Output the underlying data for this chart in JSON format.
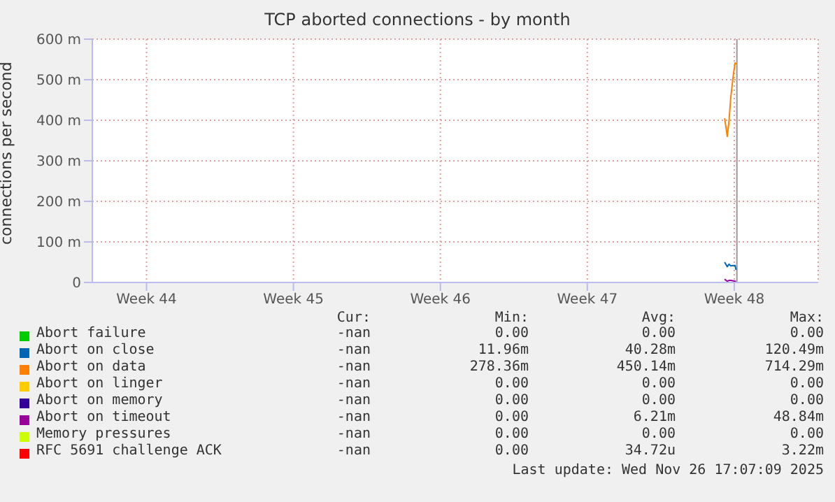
{
  "chart_data": {
    "type": "line",
    "title": "TCP aborted connections - by month",
    "ylabel": "connections per second",
    "x": [
      "2025-11-23T13:00",
      "2025-11-23T16:00",
      "2025-11-23T18:00",
      "2025-11-23T20:00",
      "2025-11-23T23:00",
      "2025-11-24T01:00",
      "2025-11-24T02:00"
    ],
    "xlim": [
      "2025-10-24T10:00",
      "2025-11-28T00:00"
    ],
    "xticks": [
      {
        "value": "2025-10-27",
        "label": "Week 44"
      },
      {
        "value": "2025-11-03",
        "label": "Week 45"
      },
      {
        "value": "2025-11-10",
        "label": "Week 46"
      },
      {
        "value": "2025-11-17",
        "label": "Week 47"
      },
      {
        "value": "2025-11-24",
        "label": "Week 48"
      }
    ],
    "ylim": [
      0,
      600
    ],
    "yticks": [
      0,
      {
        "value": 100,
        "label": "100 m"
      },
      {
        "value": 200,
        "label": "200 m"
      },
      {
        "value": 300,
        "label": "300 m"
      },
      {
        "value": 400,
        "label": "400 m"
      },
      {
        "value": 500,
        "label": "500 m"
      },
      {
        "value": 600,
        "label": "600 m"
      }
    ],
    "series": [
      {
        "name": "Abort failure",
        "color": "#00cc00",
        "values": [
          null,
          null,
          null,
          null,
          null,
          null,
          null
        ]
      },
      {
        "name": "Abort on close",
        "color": "#0066b3",
        "values": [
          50,
          39,
          45,
          41,
          42,
          42,
          31
        ]
      },
      {
        "name": "Abort on data",
        "color": "#ff8000",
        "values": [
          405,
          360,
          399,
          456,
          513,
          542,
          538
        ]
      },
      {
        "name": "Abort on linger",
        "color": "#ffcc00",
        "values": [
          null,
          null,
          null,
          null,
          null,
          null,
          null
        ]
      },
      {
        "name": "Abort on memory",
        "color": "#330099",
        "values": [
          null,
          null,
          null,
          null,
          null,
          null,
          null
        ]
      },
      {
        "name": "Abort on timeout",
        "color": "#990099",
        "values": [
          8,
          3,
          5,
          5,
          4,
          3,
          3
        ]
      },
      {
        "name": "Memory pressures",
        "color": "#ccff00",
        "values": [
          null,
          null,
          null,
          null,
          null,
          null,
          null
        ]
      },
      {
        "name": "RFC 5691 challenge ACK",
        "color": "#ff0000",
        "values": [
          null,
          null,
          null,
          null,
          null,
          null,
          null
        ]
      }
    ],
    "ref_lines": [
      {
        "axis": "x",
        "value": "2025-11-24T03:00",
        "color": "#999999"
      }
    ],
    "grid": true,
    "legend": "bottom",
    "marker": "none",
    "line_style": "solid",
    "annotations": [
      "Cur:",
      "Min:",
      "Avg:",
      "Max:",
      "-nan",
      "0.00",
      "0.00",
      "0.00",
      "-nan",
      "11.96m",
      "40.28m",
      "120.49m",
      "-nan",
      "278.36m",
      "450.14m",
      "714.29m",
      "-nan",
      "0.00",
      "0.00",
      "0.00",
      "-nan",
      "0.00",
      "0.00",
      "0.00",
      "-nan",
      "0.00",
      "6.21m",
      "48.84m",
      "-nan",
      "0.00",
      "0.00",
      "0.00",
      "-nan",
      "0.00",
      "34.72u",
      "3.22m",
      "Last update: Wed Nov 26 17:07:09 2025"
    ]
  }
}
